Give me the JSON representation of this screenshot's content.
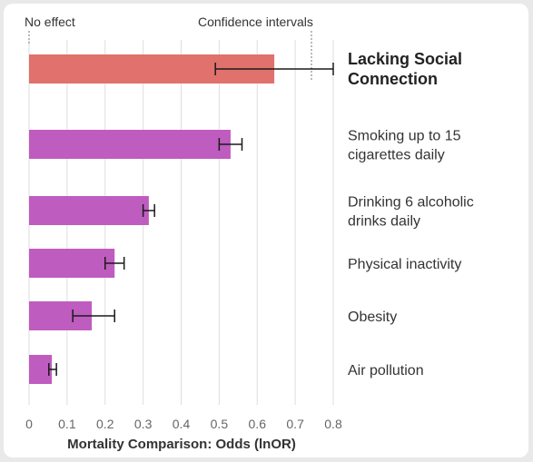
{
  "chart_data": {
    "type": "bar",
    "orientation": "horizontal",
    "title": "",
    "xlabel": "Mortality Comparison: Odds (lnOR)",
    "ylabel": "",
    "xlim": [
      0,
      0.8
    ],
    "x_ticks": [
      "0",
      "0.1",
      "0.2",
      "0.3",
      "0.4",
      "0.5",
      "0.6",
      "0.7",
      "0.8"
    ],
    "grid": true,
    "annotations": {
      "no_effect": "No effect",
      "confidence_intervals": "Confidence intervals"
    },
    "categories": [
      {
        "lines": [
          "Lacking Social",
          "Connection"
        ],
        "value": 0.645,
        "ci": [
          0.49,
          0.8
        ],
        "highlight": true
      },
      {
        "lines": [
          "Smoking up to 15",
          "cigarettes daily"
        ],
        "value": 0.53,
        "ci": [
          0.5,
          0.56
        ],
        "highlight": false
      },
      {
        "lines": [
          "Drinking 6 alcoholic",
          "drinks daily"
        ],
        "value": 0.315,
        "ci": [
          0.3,
          0.33
        ],
        "highlight": false
      },
      {
        "lines": [
          "Physical inactivity"
        ],
        "value": 0.225,
        "ci": [
          0.2,
          0.25
        ],
        "highlight": false
      },
      {
        "lines": [
          "Obesity"
        ],
        "value": 0.165,
        "ci": [
          0.115,
          0.225
        ],
        "highlight": false
      },
      {
        "lines": [
          "Air pollution"
        ],
        "value": 0.06,
        "ci": [
          0.052,
          0.072
        ],
        "highlight": false
      }
    ],
    "colors": {
      "highlight": "#e0716c",
      "default": "#bf5cbf",
      "error_bar": "#1a1a1a",
      "grid": "#dedede"
    }
  }
}
